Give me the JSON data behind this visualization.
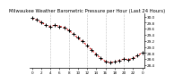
{
  "title": "Milwaukee Weather Barometric Pressure per Hour (Last 24 Hours)",
  "background_color": "#ffffff",
  "line_color": "#cc0000",
  "marker_color": "#000000",
  "grid_color": "#888888",
  "hours": [
    0,
    1,
    2,
    3,
    4,
    5,
    6,
    7,
    8,
    9,
    10,
    11,
    12,
    13,
    14,
    15,
    16,
    17,
    18,
    19,
    20,
    21,
    22,
    23,
    24
  ],
  "pressure": [
    29.95,
    29.9,
    29.82,
    29.72,
    29.68,
    29.72,
    29.68,
    29.65,
    29.55,
    29.42,
    29.3,
    29.18,
    29.05,
    28.9,
    28.75,
    28.62,
    28.52,
    28.48,
    28.5,
    28.55,
    28.6,
    28.58,
    28.62,
    28.72,
    28.8
  ],
  "ylim": [
    28.3,
    30.1
  ],
  "xlim": [
    -0.5,
    24.5
  ],
  "ytick_values": [
    30.0,
    29.8,
    29.6,
    29.4,
    29.2,
    29.0,
    28.8,
    28.6,
    28.4
  ],
  "ytick_labels": [
    "30.0",
    "29.8",
    "29.6",
    "29.4",
    "29.2",
    "29.0",
    "28.8",
    "28.6",
    "28.4"
  ],
  "xtick_positions": [
    0,
    2,
    4,
    6,
    8,
    10,
    12,
    14,
    16,
    18,
    20,
    22,
    24
  ],
  "xtick_labels": [
    "0",
    "2",
    "4",
    "6",
    "8",
    "10",
    "12",
    "14",
    "16",
    "18",
    "20",
    "22",
    "0"
  ],
  "grid_positions": [
    4,
    8,
    12,
    16,
    20
  ],
  "title_fontsize": 3.8,
  "tick_fontsize": 3.0,
  "line_width": 0.7,
  "marker_size": 3.5
}
